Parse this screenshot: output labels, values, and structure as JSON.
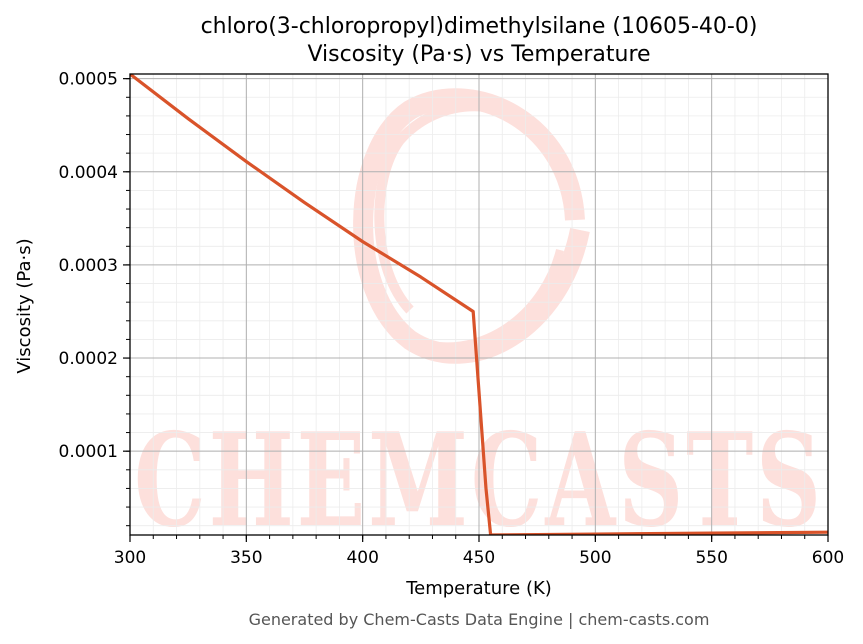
{
  "chart_data": {
    "type": "line",
    "title": "chloro(3-chloropropyl)dimethylsilane (10605-40-0)",
    "subtitle": "Viscosity (Pa·s) vs Temperature",
    "xlabel": "Temperature (K)",
    "ylabel": "Viscosity (Pa·s)",
    "xlim": [
      300,
      600
    ],
    "ylim": [
      1e-05,
      0.000505
    ],
    "xticks": [
      300,
      350,
      400,
      450,
      500,
      550,
      600
    ],
    "yticks": [
      0.0001,
      0.0002,
      0.0003,
      0.0004,
      0.0005
    ],
    "xtick_labels": [
      "300",
      "350",
      "400",
      "450",
      "500",
      "550",
      "600"
    ],
    "ytick_labels": [
      "0.0001",
      "0.0002",
      "0.0003",
      "0.0004",
      "0.0005"
    ],
    "grid": true,
    "line_color": "#d9532a",
    "series": [
      {
        "x": [
          300,
          325,
          350,
          375,
          400,
          425,
          447.5,
          453,
          455,
          500,
          550,
          600
        ],
        "values": [
          0.000505,
          0.000457,
          0.000411,
          0.000367,
          0.000325,
          0.000287,
          0.00025,
          6e-05,
          1e-05,
          1.1e-05,
          1.2e-05,
          1.3e-05
        ]
      }
    ]
  },
  "watermark": {
    "text": "CHEMCASTS",
    "color": "#fde0dc"
  },
  "footer": "Generated by Chem-Casts Data Engine | chem-casts.com"
}
